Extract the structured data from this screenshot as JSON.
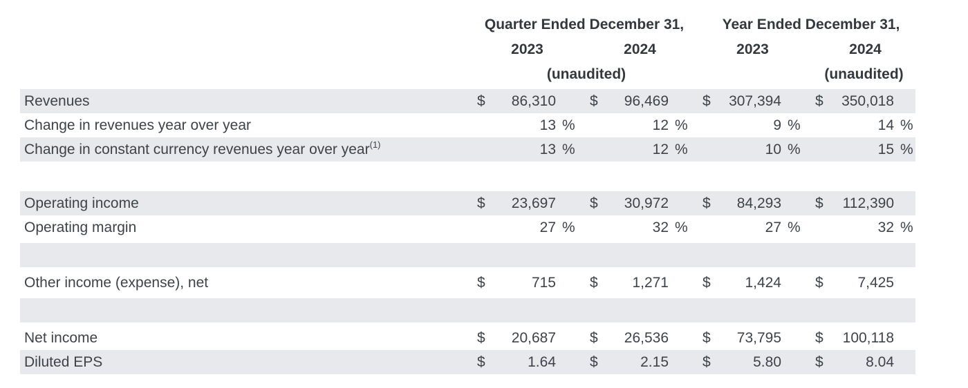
{
  "table": {
    "header": {
      "quarter_group_label": "Quarter Ended December 31,",
      "year_group_label": "Year Ended December 31,",
      "columns": [
        "2023",
        "2024",
        "2023",
        "2024"
      ],
      "quarter_unaudited": "(unaudited)",
      "year_unaudited": "(unaudited)"
    },
    "rows": [
      {
        "label": "Revenues",
        "shaded": true,
        "cells": [
          {
            "currency": "$",
            "value": "86,310"
          },
          {
            "currency": "$",
            "value": "96,469"
          },
          {
            "currency": "$",
            "value": "307,394"
          },
          {
            "currency": "$",
            "value": "350,018"
          }
        ]
      },
      {
        "label": "Change in revenues year over year",
        "shaded": false,
        "cells": [
          {
            "value": "13",
            "unit": "%"
          },
          {
            "value": "12",
            "unit": "%"
          },
          {
            "value": "9",
            "unit": "%"
          },
          {
            "value": "14",
            "unit": "%"
          }
        ]
      },
      {
        "label": "Change in constant currency revenues year over year",
        "sup": "(1)",
        "shaded": true,
        "cells": [
          {
            "value": "13",
            "unit": "%"
          },
          {
            "value": "12",
            "unit": "%"
          },
          {
            "value": "10",
            "unit": "%"
          },
          {
            "value": "15",
            "unit": "%"
          }
        ]
      },
      {
        "type": "spacer",
        "shaded": false
      },
      {
        "label": "Operating income",
        "shaded": true,
        "cells": [
          {
            "currency": "$",
            "value": "23,697"
          },
          {
            "currency": "$",
            "value": "30,972"
          },
          {
            "currency": "$",
            "value": "84,293"
          },
          {
            "currency": "$",
            "value": "112,390"
          }
        ]
      },
      {
        "label": "Operating margin",
        "shaded": false,
        "cells": [
          {
            "value": "27",
            "unit": "%"
          },
          {
            "value": "32",
            "unit": "%"
          },
          {
            "value": "27",
            "unit": "%"
          },
          {
            "value": "32",
            "unit": "%"
          }
        ]
      },
      {
        "type": "spacer",
        "shaded": true
      },
      {
        "label": "Other income (expense), net",
        "shaded": false,
        "cells": [
          {
            "currency": "$",
            "value": "715"
          },
          {
            "currency": "$",
            "value": "1,271"
          },
          {
            "currency": "$",
            "value": "1,424"
          },
          {
            "currency": "$",
            "value": "7,425"
          }
        ]
      },
      {
        "type": "spacer",
        "shaded": true
      },
      {
        "label": "Net income",
        "shaded": false,
        "cells": [
          {
            "currency": "$",
            "value": "20,687"
          },
          {
            "currency": "$",
            "value": "26,536"
          },
          {
            "currency": "$",
            "value": "73,795"
          },
          {
            "currency": "$",
            "value": "100,118"
          }
        ]
      },
      {
        "label": "Diluted EPS",
        "shaded": true,
        "cells": [
          {
            "currency": "$",
            "value": "1.64"
          },
          {
            "currency": "$",
            "value": "2.15"
          },
          {
            "currency": "$",
            "value": "5.80"
          },
          {
            "currency": "$",
            "value": "8.04"
          }
        ]
      }
    ],
    "colors": {
      "row_shade": "#e7e9ed",
      "body_text": "#3d4349",
      "header_text": "#33383d",
      "background": "#ffffff"
    }
  }
}
